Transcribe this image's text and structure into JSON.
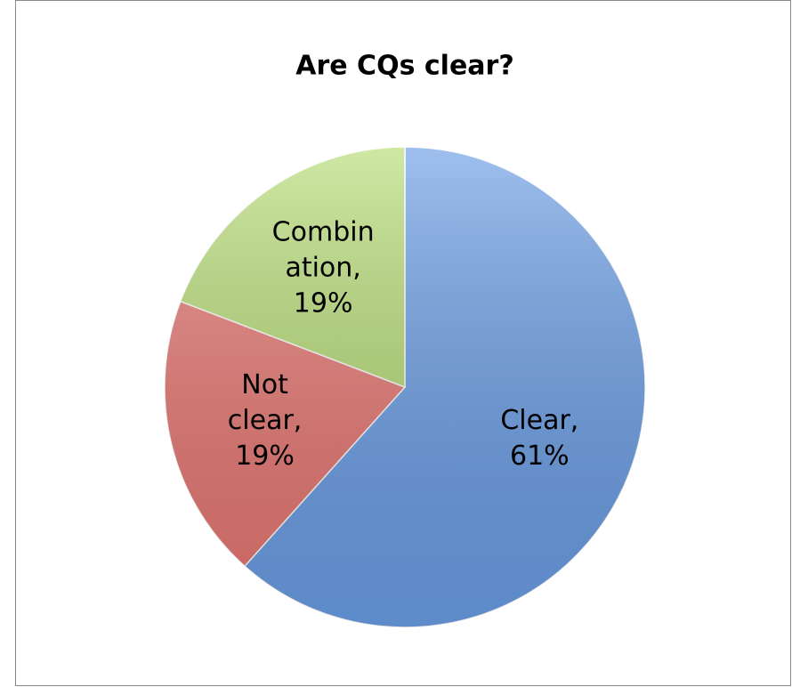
{
  "chart_data": {
    "type": "pie",
    "title": "Are CQs clear?",
    "values": [
      61,
      19,
      19
    ],
    "value_labels": [
      "Clear, 61%",
      "Not clear, 19%",
      "Combination, 19%"
    ],
    "colors": [
      "#6b9ee6",
      "#e87772",
      "#b6dc74"
    ]
  }
}
